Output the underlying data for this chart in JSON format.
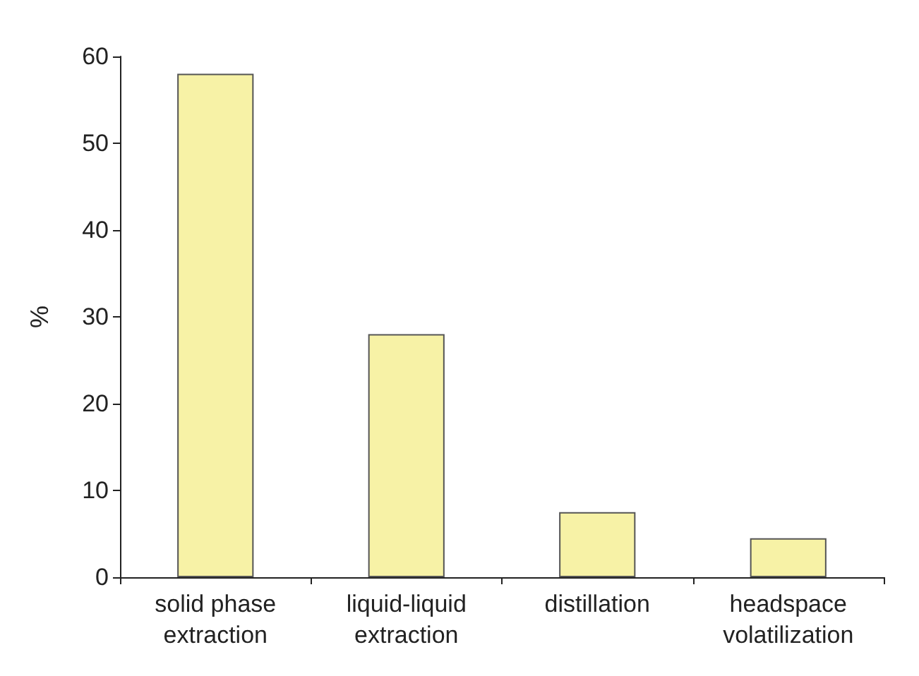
{
  "chart_data": {
    "type": "bar",
    "ylabel": "%",
    "categories": [
      "solid phase\nextraction",
      "liquid-liquid\nextraction",
      "distillation",
      "headspace\nvolatilization"
    ],
    "values": [
      58,
      28,
      7.5,
      4.5
    ],
    "color": "#f7f2a6",
    "ylim": [
      0,
      60
    ],
    "yticks": [
      0,
      10,
      20,
      30,
      40,
      50,
      60
    ],
    "grid": false
  }
}
